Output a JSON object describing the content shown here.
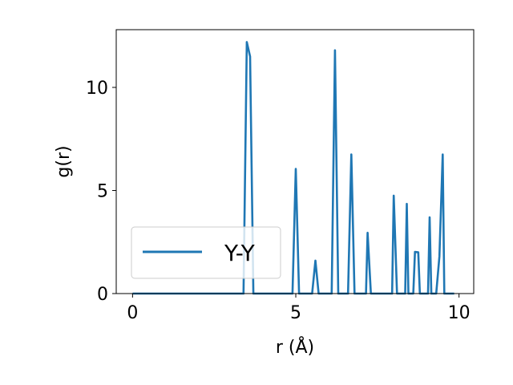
{
  "chart_data": {
    "type": "line",
    "title": "",
    "xlabel": "r (Å)",
    "ylabel": "g(r)",
    "xlim": [
      -0.5,
      10.45
    ],
    "ylim": [
      0,
      12.8
    ],
    "xticks": [
      0,
      5,
      10
    ],
    "xtick_labels": [
      "0",
      "5",
      "10"
    ],
    "yticks": [
      0,
      5,
      10
    ],
    "ytick_labels": [
      "0",
      "5",
      "10"
    ],
    "grid": false,
    "legend_position": "lower-left",
    "series": [
      {
        "name": "Y-Y",
        "color": "#1f77b4",
        "x": [
          0.0,
          3.4,
          3.5,
          3.6,
          3.7,
          4.9,
          5.0,
          5.1,
          5.5,
          5.6,
          5.7,
          6.1,
          6.2,
          6.3,
          6.6,
          6.7,
          6.8,
          7.15,
          7.2,
          7.3,
          7.95,
          8.0,
          8.1,
          8.35,
          8.4,
          8.45,
          8.6,
          8.65,
          8.75,
          8.8,
          9.05,
          9.1,
          9.15,
          9.3,
          9.4,
          9.5,
          9.55,
          9.85
        ],
        "y": [
          0,
          0,
          12.2,
          11.5,
          0,
          0,
          6.05,
          0,
          0,
          1.6,
          0,
          0,
          11.8,
          0,
          0,
          6.75,
          0,
          0,
          2.95,
          0,
          0,
          4.75,
          0,
          0,
          4.35,
          0,
          0,
          2.02,
          2.0,
          0,
          0,
          3.7,
          0,
          0,
          1.8,
          6.75,
          0,
          0
        ]
      }
    ]
  }
}
